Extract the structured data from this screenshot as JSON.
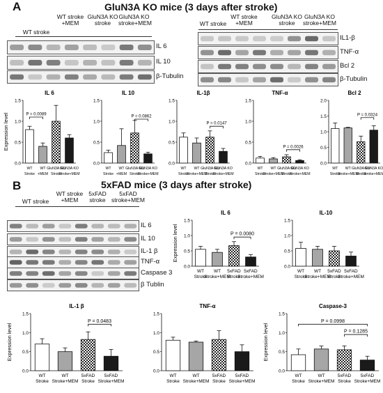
{
  "panelA": {
    "letter": "A",
    "title": "GluN3A KO mice (3 days after stroke)",
    "left_lanes": [
      "WT stroke",
      "WT stroke\n+MEM",
      "GluN3A KO\nstroke",
      "GluN3A KO\nstroke+MEM"
    ],
    "right_lanes": [
      "WT stroke",
      "WT stroke\n+MEM",
      "GluN3A KO\nstroke",
      "GluN3A KO\nstroke+MEM"
    ],
    "left_blots": [
      "IL 6",
      "IL 10",
      "β-Tubulin"
    ],
    "right_blots": [
      "IL1-β",
      "TNF-α",
      "Bcl 2",
      "β-Tubulin"
    ]
  },
  "panelB": {
    "letter": "B",
    "title": "5xFAD mice (3 days after stroke)",
    "lanes": [
      "WT stroke",
      "WT stroke\n+MEM",
      "5xFAD\nstroke",
      "5xFAD\nstroke+MEM"
    ],
    "blots": [
      "IL 6",
      "IL 10",
      "IL-1 β",
      "TNF-α",
      "Caspase 3",
      "β Tublin"
    ]
  },
  "colors": {
    "white": "#ffffff",
    "gray": "#a6a6a6",
    "pattern": "#222222",
    "black": "#1a1a1a"
  },
  "chart_data": [
    {
      "id": "A-IL6",
      "type": "bar",
      "title": "IL 6",
      "ylabel": "Expression level",
      "ylim": [
        0,
        1.5
      ],
      "yticks": [
        "0.0",
        "0.5",
        "1.0",
        "1.5"
      ],
      "categories": [
        "WT\nStroke",
        "WT\n+MEM",
        "GluN3A KO\nStroke",
        "GluN3A KO\nStroke+MEM"
      ],
      "values": [
        0.8,
        0.4,
        1.0,
        0.6
      ],
      "errors": [
        0.08,
        0.08,
        0.38,
        0.08
      ],
      "styles": [
        "white",
        "gray",
        "pattern",
        "black"
      ],
      "annotations": [
        {
          "text": "P = 0.0089",
          "from": 0,
          "to": 1,
          "y": 1.1
        }
      ]
    },
    {
      "id": "A-IL10",
      "type": "bar",
      "title": "IL 10",
      "ylabel": "",
      "ylim": [
        0,
        1.5
      ],
      "yticks": [
        "0.0",
        "0.5",
        "1.0",
        "1.5"
      ],
      "categories": [
        "WT\nStroke",
        "WT\n+MEM",
        "GluN3A KO\nStroke",
        "GluN3A KO\nStroke+MEM"
      ],
      "values": [
        0.25,
        0.42,
        0.72,
        0.22
      ],
      "errors": [
        0.06,
        0.4,
        0.3,
        0.04
      ],
      "styles": [
        "white",
        "gray",
        "pattern",
        "black"
      ],
      "annotations": [
        {
          "text": "P = 0.0862",
          "from": 2,
          "to": 3,
          "y": 1.05
        }
      ]
    },
    {
      "id": "A-IL1b",
      "type": "bar",
      "title": "IL-1β",
      "ylabel": "",
      "ylim": [
        0,
        1.5
      ],
      "yticks": [
        "0.0",
        "0.5",
        "1.0",
        "1.5"
      ],
      "categories": [
        "WT\nStroke",
        "WT\nStroke+MEM",
        "GluN3A KO\nStroke",
        "GluN3A KO\nStroke+MEM"
      ],
      "values": [
        0.62,
        0.48,
        0.62,
        0.28
      ],
      "errors": [
        0.1,
        0.12,
        0.15,
        0.07
      ],
      "styles": [
        "white",
        "gray",
        "pattern",
        "black"
      ],
      "annotations": [
        {
          "text": "P = 0.0147",
          "from": 2,
          "to": 3,
          "y": 0.88
        }
      ]
    },
    {
      "id": "A-TNFa",
      "type": "bar",
      "title": "TNF-α",
      "ylabel": "",
      "ylim": [
        0,
        1.5
      ],
      "yticks": [
        "0.0",
        "0.5",
        "1.0",
        "1.5"
      ],
      "categories": [
        "WT\nStroke",
        "WT\nStroke+MEM",
        "GluN3A KO\nStroke",
        "GluN3A KO\nStroke+MEM"
      ],
      "values": [
        0.12,
        0.1,
        0.15,
        0.06
      ],
      "errors": [
        0.04,
        0.03,
        0.05,
        0.02
      ],
      "styles": [
        "white",
        "gray",
        "pattern",
        "black"
      ],
      "annotations": [
        {
          "text": "P = 0.0026",
          "from": 2,
          "to": 3,
          "y": 0.32
        }
      ]
    },
    {
      "id": "A-Bcl2",
      "type": "bar",
      "title": "Bcl 2",
      "ylabel": "",
      "ylim": [
        0,
        2.0
      ],
      "yticks": [
        "0.0",
        "0.5",
        "1.0",
        "1.5",
        "2.0"
      ],
      "categories": [
        "WT\nStroke",
        "WT\nStroke+MEM",
        "GluN3A KO\nStroke",
        "GluN3A KO\nStroke+MEM"
      ],
      "values": [
        1.1,
        1.12,
        0.68,
        1.05
      ],
      "errors": [
        0.18,
        0.02,
        0.18,
        0.14
      ],
      "styles": [
        "white",
        "gray",
        "pattern",
        "black"
      ],
      "annotations": [
        {
          "text": "P = 0.0324",
          "from": 2,
          "to": 3,
          "y": 1.45
        }
      ]
    },
    {
      "id": "B-IL6",
      "type": "bar",
      "title": "IL 6",
      "ylabel": "Expression level",
      "ylim": [
        0,
        1.5
      ],
      "yticks": [
        "0.0",
        "0.5",
        "1.0",
        "1.5"
      ],
      "categories": [
        "WT\nStroke",
        "WT\nStroke+MEM",
        "5xFAD\nStroke",
        "5xFAD\nStroke+MEM"
      ],
      "values": [
        0.55,
        0.45,
        0.67,
        0.3
      ],
      "errors": [
        0.1,
        0.1,
        0.13,
        0.08
      ],
      "styles": [
        "white",
        "gray",
        "pattern",
        "black"
      ],
      "annotations": [
        {
          "text": "P = 0.0080",
          "from": 2,
          "to": 3,
          "y": 0.95
        }
      ]
    },
    {
      "id": "B-IL10",
      "type": "bar",
      "title": "IL-10",
      "ylabel": "",
      "ylim": [
        0,
        1.5
      ],
      "yticks": [
        "0.0",
        "0.5",
        "1.0",
        "1.5"
      ],
      "categories": [
        "WT\nStroke",
        "WT\nStroke+MEM",
        "5xFAD\nStroke",
        "5xFAD\nStroke+MEM"
      ],
      "values": [
        0.58,
        0.55,
        0.5,
        0.33
      ],
      "errors": [
        0.2,
        0.1,
        0.15,
        0.13
      ],
      "styles": [
        "white",
        "gray",
        "pattern",
        "black"
      ],
      "annotations": []
    },
    {
      "id": "B-IL1b",
      "type": "bar",
      "title": "IL-1 β",
      "ylabel": "Expression level",
      "ylim": [
        0,
        1.5
      ],
      "yticks": [
        "0.0",
        "0.5",
        "1.0",
        "1.5"
      ],
      "categories": [
        "WT\nStroke",
        "WT\nStroke+MEM",
        "5xFAD\nStroke",
        "5xFAD\nStroke+MEM"
      ],
      "values": [
        0.7,
        0.5,
        0.82,
        0.38
      ],
      "errors": [
        0.14,
        0.1,
        0.2,
        0.18
      ],
      "styles": [
        "white",
        "gray",
        "pattern",
        "black"
      ],
      "annotations": [
        {
          "text": "P = 0.0483",
          "from": 2,
          "to": 3,
          "y": 1.22
        }
      ]
    },
    {
      "id": "B-TNFa",
      "type": "bar",
      "title": "TNF-α",
      "ylabel": "",
      "ylim": [
        0,
        1.5
      ],
      "yticks": [
        "0.0",
        "0.5",
        "1.0",
        "1.5"
      ],
      "categories": [
        "WT\nStroke",
        "WT\nStroke+MEM",
        "5xFAD\nStroke",
        "5xFAD\nStroke+MEM"
      ],
      "values": [
        0.8,
        0.75,
        0.82,
        0.5
      ],
      "errors": [
        0.08,
        0.03,
        0.23,
        0.18
      ],
      "styles": [
        "white",
        "gray",
        "pattern",
        "black"
      ],
      "annotations": []
    },
    {
      "id": "B-Casp3",
      "type": "bar",
      "title": "Caspase-3",
      "ylabel": "Expression level",
      "ylim": [
        0,
        1.5
      ],
      "yticks": [
        "0.0",
        "0.5",
        "1.0",
        "1.5"
      ],
      "categories": [
        "WT\nStroke",
        "WT\nStroke+MEM",
        "5xFAD\nStroke",
        "5xFAD\nStroke+MEM"
      ],
      "values": [
        0.42,
        0.57,
        0.55,
        0.28
      ],
      "errors": [
        0.15,
        0.08,
        0.1,
        0.1
      ],
      "styles": [
        "white",
        "gray",
        "pattern",
        "black"
      ],
      "annotations": [
        {
          "text": "P = 0.0998",
          "from": 0,
          "to": 3,
          "y": 1.22
        },
        {
          "text": "P = 0.1285",
          "from": 2,
          "to": 3,
          "y": 0.95
        }
      ]
    }
  ]
}
